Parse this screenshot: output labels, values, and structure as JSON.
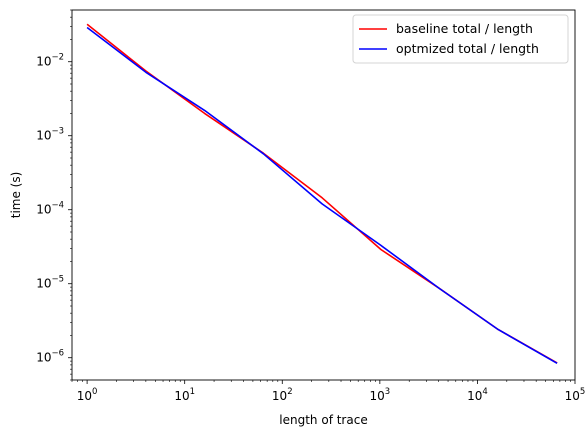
{
  "chart_data": {
    "type": "line",
    "xscale": "log",
    "yscale": "log",
    "xlabel": "length of trace",
    "ylabel": "time (s)",
    "xlim": [
      0.7,
      100000
    ],
    "ylim": [
      5e-07,
      0.05
    ],
    "grid": false,
    "legend_position": "top-right",
    "x_ticks": [
      {
        "value": 1,
        "base": "10",
        "exp": "0"
      },
      {
        "value": 10,
        "base": "10",
        "exp": "1"
      },
      {
        "value": 100,
        "base": "10",
        "exp": "2"
      },
      {
        "value": 1000,
        "base": "10",
        "exp": "3"
      },
      {
        "value": 10000,
        "base": "10",
        "exp": "4"
      },
      {
        "value": 100000,
        "base": "10",
        "exp": "5"
      }
    ],
    "y_ticks": [
      {
        "value": 1e-06,
        "base": "10",
        "exp": "−6"
      },
      {
        "value": 1e-05,
        "base": "10",
        "exp": "−5"
      },
      {
        "value": 0.0001,
        "base": "10",
        "exp": "−4"
      },
      {
        "value": 0.001,
        "base": "10",
        "exp": "−3"
      },
      {
        "value": 0.01,
        "base": "10",
        "exp": "−2"
      }
    ],
    "series": [
      {
        "name": "baseline total / length",
        "color": "#ff0000",
        "x": [
          1,
          4,
          16,
          64,
          256,
          1024,
          4096,
          16384,
          65536
        ],
        "y": [
          0.032,
          0.0075,
          0.002,
          0.00058,
          0.000145,
          2.9e-05,
          8.6e-06,
          2.4e-06,
          8.5e-07
        ]
      },
      {
        "name": "optmized total / length",
        "color": "#0000ff",
        "x": [
          1,
          4,
          16,
          64,
          256,
          1024,
          4096,
          16384,
          65536
        ],
        "y": [
          0.029,
          0.0072,
          0.0022,
          0.00057,
          0.00012,
          3.3e-05,
          8.6e-06,
          2.4e-06,
          8.4e-07
        ]
      }
    ]
  }
}
